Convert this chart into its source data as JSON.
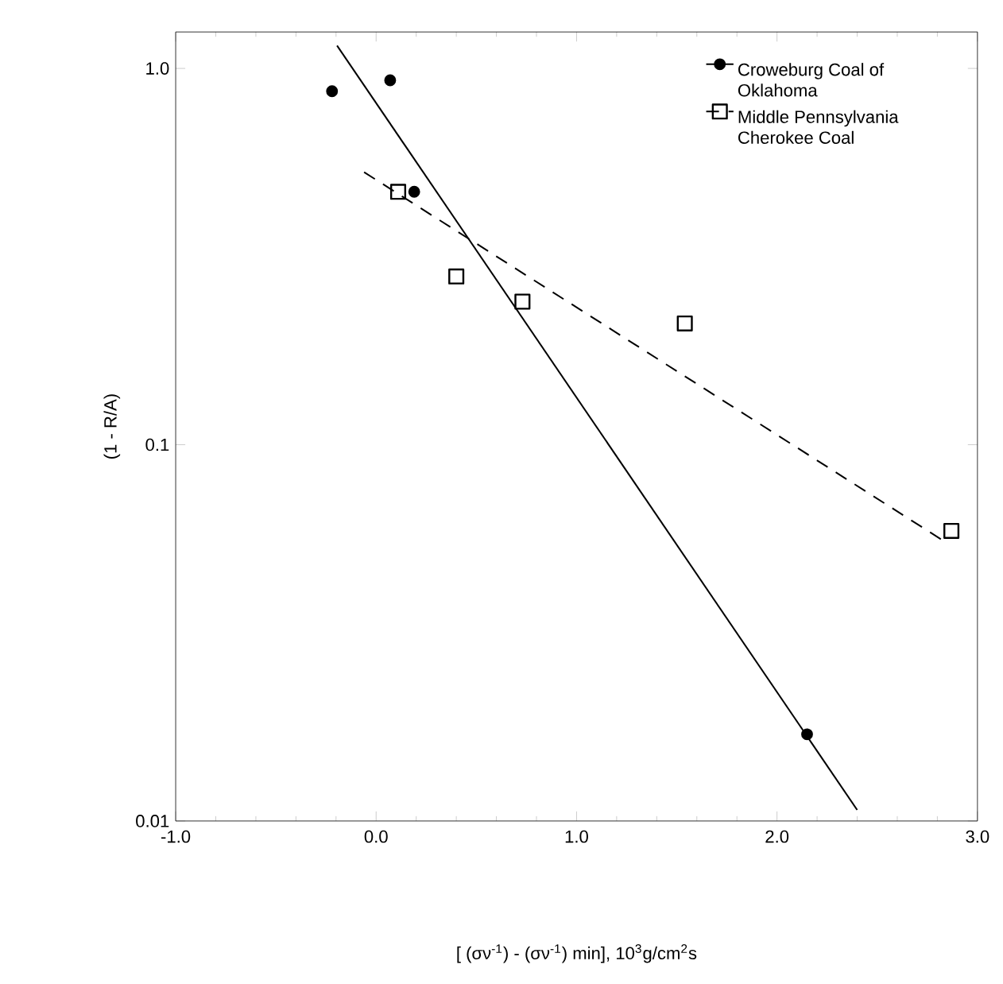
{
  "chart_data": {
    "type": "scatter",
    "xlabel": "[ (σν$^{-1}$) - (σν$^{-1}$) min], 10$^{3}$g/cm$^{2}$s",
    "ylabel": "(1 - R/A)",
    "xlim": [
      -1.0,
      3.0
    ],
    "xticks": [
      {
        "value": -1,
        "label": "-1.0"
      },
      {
        "value": 0,
        "label": "0.0"
      },
      {
        "value": 1,
        "label": "1.0"
      },
      {
        "value": 2,
        "label": "2.0"
      },
      {
        "value": 3,
        "label": "3.0"
      }
    ],
    "ylim": [
      0.01,
      1.25
    ],
    "yticks": [
      0.01,
      0.1,
      {
        "value": 1,
        "label": "1.0"
      }
    ],
    "log": "y",
    "legend": "top right",
    "grid": false,
    "series": [
      {
        "name": "Croweburg Coal of Oklahoma",
        "marker": "circle",
        "color": "#000000",
        "x": [
          -0.22,
          0.07,
          0.19,
          2.15
        ],
        "values": [
          0.87,
          0.93,
          0.47,
          0.017
        ]
      },
      {
        "type": "line",
        "line_style": "solid",
        "marker": "none",
        "color": "#000000",
        "x": [
          -0.195,
          2.4
        ],
        "values": [
          1.15,
          0.0107
        ]
      },
      {
        "name": "Middle Pennsylvania Cherokee Coal",
        "marker": "square",
        "color": "#000000",
        "x": [
          0.11,
          0.4,
          0.73,
          1.54,
          2.87
        ],
        "values": [
          0.47,
          0.28,
          0.24,
          0.21,
          0.059
        ]
      },
      {
        "type": "line",
        "line_style": "dashed",
        "marker": "none",
        "color": "#000000",
        "x": [
          -0.06,
          2.82
        ],
        "values": [
          0.53,
          0.056
        ]
      }
    ]
  }
}
